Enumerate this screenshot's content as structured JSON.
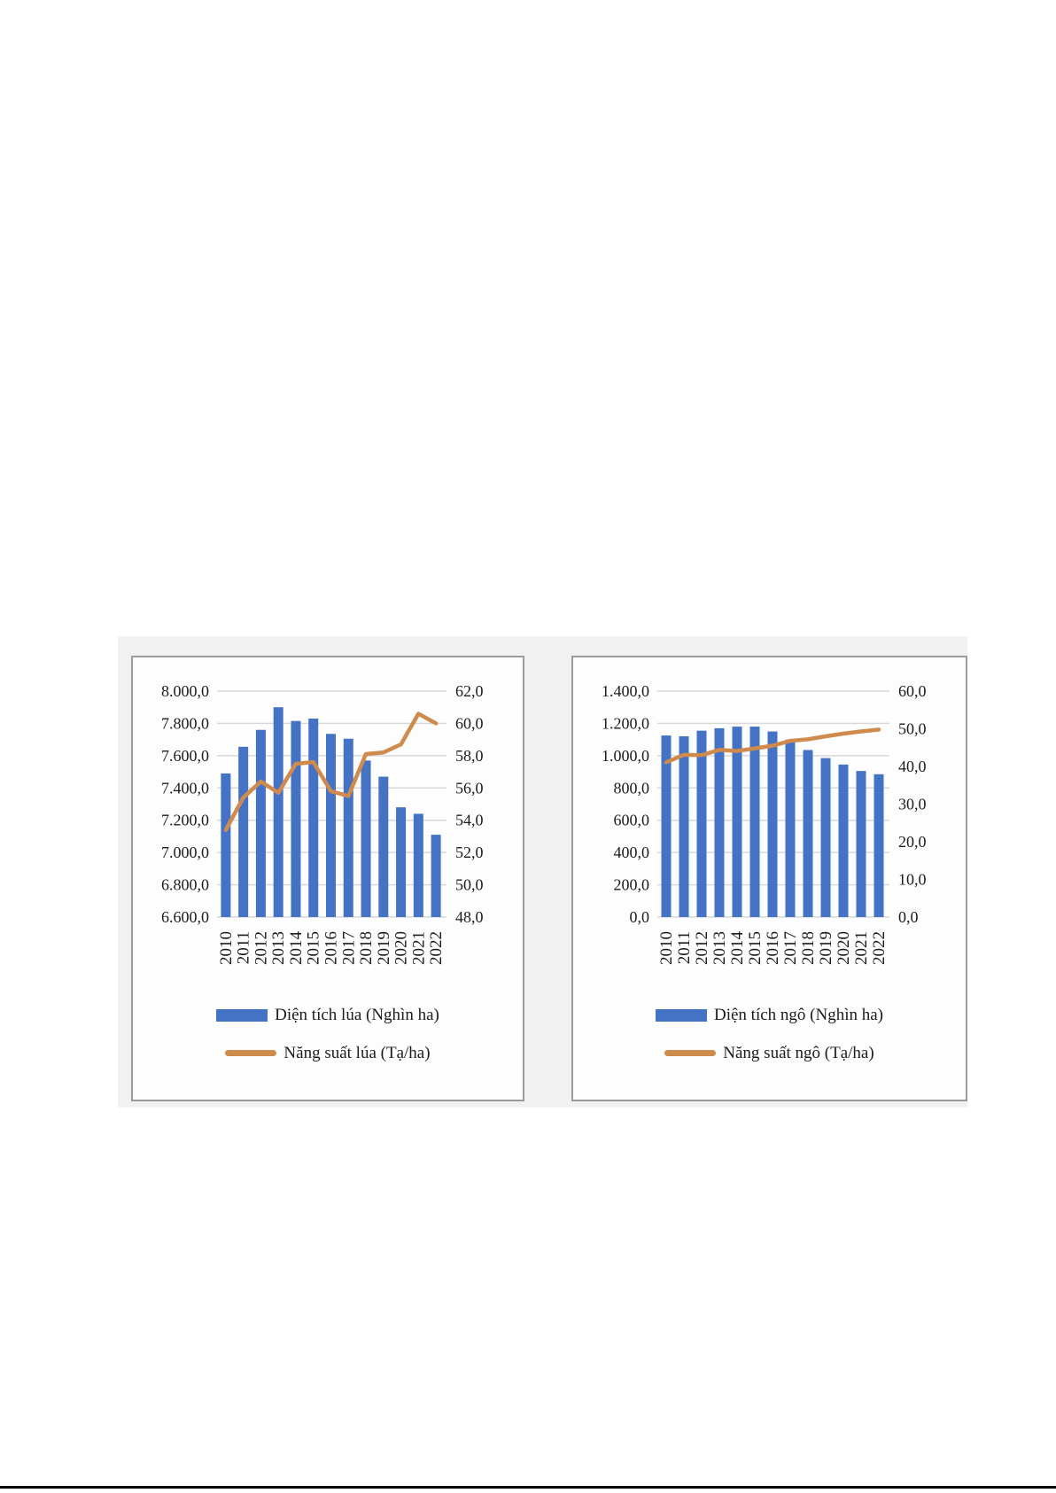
{
  "page": {
    "background_color": "#ffffff",
    "bottom_rule_color": "#000000",
    "backdrop_color": "#f1f1f1"
  },
  "chart_data": [
    {
      "type": "combo_bar_line",
      "title": "",
      "categories": [
        "2010",
        "2011",
        "2012",
        "2013",
        "2014",
        "2015",
        "2016",
        "2017",
        "2018",
        "2019",
        "2020",
        "2021",
        "2022"
      ],
      "series": [
        {
          "name": "Diện tích lúa (Nghìn ha)",
          "type": "bar",
          "axis": "left",
          "color": "#4472c4",
          "values": [
            7490,
            7655,
            7760,
            7900,
            7815,
            7830,
            7735,
            7705,
            7570,
            7470,
            7280,
            7240,
            7110
          ]
        },
        {
          "name": "Năng suất lúa (Tạ/ha)",
          "type": "line",
          "axis": "right",
          "color": "#cf8a4e",
          "values": [
            53.4,
            55.4,
            56.4,
            55.7,
            57.5,
            57.6,
            55.8,
            55.5,
            58.1,
            58.2,
            58.7,
            60.6,
            60.0
          ]
        }
      ],
      "left_axis": {
        "min": 6600,
        "max": 8000,
        "step": 200,
        "ticks": [
          "8.000,0",
          "7.800,0",
          "7.600,0",
          "7.400,0",
          "7.200,0",
          "7.000,0",
          "6.800,0",
          "6.600,0"
        ]
      },
      "right_axis": {
        "min": 48,
        "max": 62,
        "step": 2,
        "ticks": [
          "62,0",
          "60,0",
          "58,0",
          "56,0",
          "54,0",
          "52,0",
          "50,0",
          "48,0"
        ]
      },
      "grid": true,
      "legend_position": "bottom",
      "gridline_color": "#d8d8d8",
      "text_color": "#1c1c1c"
    },
    {
      "type": "combo_bar_line",
      "title": "",
      "categories": [
        "2010",
        "2011",
        "2012",
        "2013",
        "2014",
        "2015",
        "2016",
        "2017",
        "2018",
        "2019",
        "2020",
        "2021",
        "2022"
      ],
      "series": [
        {
          "name": "Diện tích ngô (Nghìn ha)",
          "type": "bar",
          "axis": "left",
          "color": "#4472c4",
          "values": [
            1125,
            1120,
            1155,
            1170,
            1180,
            1180,
            1150,
            1100,
            1035,
            985,
            945,
            905,
            885
          ]
        },
        {
          "name": "Năng suất ngô (Tạ/ha)",
          "type": "line",
          "axis": "right",
          "color": "#cf8a4e",
          "values": [
            41.1,
            43.1,
            43.0,
            44.4,
            44.1,
            44.8,
            45.5,
            46.8,
            47.2,
            48.0,
            48.7,
            49.3,
            49.8
          ]
        }
      ],
      "left_axis": {
        "min": 0,
        "max": 1400,
        "step": 200,
        "ticks": [
          "1.400,0",
          "1.200,0",
          "1.000,0",
          "800,0",
          "600,0",
          "400,0",
          "200,0",
          "0,0"
        ]
      },
      "right_axis": {
        "min": 0,
        "max": 60,
        "step": 10,
        "ticks": [
          "60,0",
          "50,0",
          "40,0",
          "30,0",
          "20,0",
          "10,0",
          "0,0"
        ]
      },
      "grid": true,
      "legend_position": "bottom",
      "gridline_color": "#d8d8d8",
      "text_color": "#1c1c1c"
    }
  ]
}
